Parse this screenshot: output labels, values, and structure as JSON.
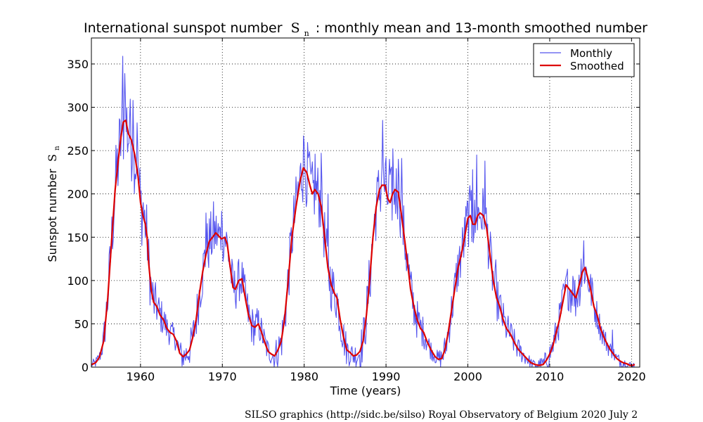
{
  "chart_data": {
    "type": "line",
    "title": "International sunspot number",
    "title_symbol": "S",
    "title_subscript": "n",
    "title_rest": ": monthly mean and 13-month smoothed number",
    "xlabel": "Time (years)",
    "ylabel": "Sunspot number",
    "ylabel_symbol": "S",
    "ylabel_subscript": "n",
    "xlim": [
      1954,
      2021
    ],
    "ylim": [
      0,
      380
    ],
    "x_ticks": [
      1960,
      1970,
      1980,
      1990,
      2000,
      2010,
      2020
    ],
    "y_ticks": [
      0,
      50,
      100,
      150,
      200,
      250,
      300,
      350
    ],
    "grid": true,
    "legend_position": "top-right",
    "credit": "SILSO graphics (http://sidc.be/silso)  Royal Observatory of Belgium  2020 July 2",
    "series": [
      {
        "name": "Monthly",
        "color": "#5555ee",
        "noise": [
          [
            1954.0,
            3
          ],
          [
            1955.0,
            5
          ],
          [
            1956.0,
            18
          ],
          [
            1957.0,
            28
          ],
          [
            1958.0,
            35
          ],
          [
            1959.0,
            30
          ],
          [
            1960.0,
            28
          ],
          [
            1962.0,
            15
          ],
          [
            1964.0,
            8
          ],
          [
            1966.0,
            12
          ],
          [
            1968.0,
            22
          ],
          [
            1970.0,
            18
          ],
          [
            1972.0,
            16
          ],
          [
            1974.0,
            14
          ],
          [
            1976.0,
            8
          ],
          [
            1978.0,
            20
          ],
          [
            1980.0,
            26
          ],
          [
            1982.0,
            22
          ],
          [
            1984.0,
            18
          ],
          [
            1986.0,
            8
          ],
          [
            1988.0,
            22
          ],
          [
            1990.0,
            25
          ],
          [
            1992.0,
            22
          ],
          [
            1994.0,
            14
          ],
          [
            1996.0,
            5
          ],
          [
            1998.0,
            15
          ],
          [
            2000.0,
            22
          ],
          [
            2002.0,
            22
          ],
          [
            2004.0,
            14
          ],
          [
            2006.0,
            9
          ],
          [
            2008.0,
            3
          ],
          [
            2010.0,
            9
          ],
          [
            2012.0,
            16
          ],
          [
            2014.0,
            18
          ],
          [
            2016.0,
            10
          ],
          [
            2018.0,
            5
          ],
          [
            2020.0,
            3
          ],
          [
            2021.0,
            2
          ]
        ],
        "peaks": [
          [
            1957.85,
            359
          ],
          [
            1958.1,
            339
          ],
          [
            1957.5,
            285
          ],
          [
            1958.7,
            285
          ],
          [
            1959.1,
            308
          ],
          [
            1959.6,
            282
          ],
          [
            1960.3,
            190
          ],
          [
            1968.0,
            178
          ],
          [
            1968.9,
            191
          ],
          [
            1969.9,
            180
          ],
          [
            1979.9,
            267
          ],
          [
            1980.6,
            245
          ],
          [
            1981.3,
            246
          ],
          [
            1982.1,
            247
          ],
          [
            1982.9,
            200
          ],
          [
            1989.5,
            230
          ],
          [
            1989.6,
            285
          ],
          [
            1990.4,
            240
          ],
          [
            1990.8,
            252
          ],
          [
            1991.5,
            240
          ],
          [
            1991.9,
            241
          ],
          [
            2000.4,
            204
          ],
          [
            2000.6,
            228
          ],
          [
            2001.1,
            245
          ],
          [
            2002.1,
            238
          ],
          [
            2003.4,
            124
          ],
          [
            2011.9,
            100
          ],
          [
            2012.8,
            105
          ],
          [
            2013.8,
            125
          ],
          [
            2014.2,
            146
          ],
          [
            2015.2,
            103
          ],
          [
            2017.7,
            43
          ]
        ]
      },
      {
        "name": "Smoothed",
        "color": "#dd0000",
        "points": [
          [
            1954.0,
            3
          ],
          [
            1954.3,
            4
          ],
          [
            1954.6,
            6
          ],
          [
            1955.0,
            12
          ],
          [
            1955.5,
            30
          ],
          [
            1956.0,
            80
          ],
          [
            1956.5,
            150
          ],
          [
            1956.9,
            205
          ],
          [
            1957.3,
            240
          ],
          [
            1957.6,
            265
          ],
          [
            1957.9,
            283
          ],
          [
            1958.2,
            285
          ],
          [
            1958.5,
            270
          ],
          [
            1958.9,
            262
          ],
          [
            1959.3,
            245
          ],
          [
            1959.7,
            220
          ],
          [
            1960.0,
            190
          ],
          [
            1960.3,
            175
          ],
          [
            1960.6,
            165
          ],
          [
            1960.8,
            150
          ],
          [
            1961.0,
            120
          ],
          [
            1961.3,
            90
          ],
          [
            1961.6,
            75
          ],
          [
            1962.0,
            70
          ],
          [
            1962.4,
            60
          ],
          [
            1962.8,
            55
          ],
          [
            1963.2,
            45
          ],
          [
            1963.6,
            40
          ],
          [
            1964.0,
            38
          ],
          [
            1964.4,
            30
          ],
          [
            1964.8,
            16
          ],
          [
            1965.2,
            12
          ],
          [
            1965.6,
            15
          ],
          [
            1966.0,
            20
          ],
          [
            1966.4,
            35
          ],
          [
            1966.8,
            55
          ],
          [
            1967.2,
            85
          ],
          [
            1967.6,
            110
          ],
          [
            1968.0,
            130
          ],
          [
            1968.4,
            145
          ],
          [
            1968.8,
            150
          ],
          [
            1969.2,
            155
          ],
          [
            1969.5,
            152
          ],
          [
            1969.9,
            148
          ],
          [
            1970.3,
            150
          ],
          [
            1970.6,
            142
          ],
          [
            1970.9,
            120
          ],
          [
            1971.3,
            92
          ],
          [
            1971.6,
            90
          ],
          [
            1972.0,
            100
          ],
          [
            1972.4,
            102
          ],
          [
            1972.8,
            80
          ],
          [
            1973.2,
            60
          ],
          [
            1973.6,
            48
          ],
          [
            1974.0,
            46
          ],
          [
            1974.4,
            50
          ],
          [
            1974.8,
            40
          ],
          [
            1975.2,
            28
          ],
          [
            1975.6,
            18
          ],
          [
            1976.0,
            15
          ],
          [
            1976.4,
            13
          ],
          [
            1976.8,
            20
          ],
          [
            1977.2,
            30
          ],
          [
            1977.6,
            55
          ],
          [
            1978.0,
            95
          ],
          [
            1978.5,
            150
          ],
          [
            1979.0,
            185
          ],
          [
            1979.5,
            215
          ],
          [
            1979.9,
            230
          ],
          [
            1980.3,
            225
          ],
          [
            1980.7,
            210
          ],
          [
            1981.0,
            200
          ],
          [
            1981.3,
            205
          ],
          [
            1981.7,
            200
          ],
          [
            1982.1,
            185
          ],
          [
            1982.5,
            150
          ],
          [
            1982.9,
            115
          ],
          [
            1983.3,
            95
          ],
          [
            1983.7,
            85
          ],
          [
            1984.0,
            80
          ],
          [
            1984.4,
            55
          ],
          [
            1984.8,
            35
          ],
          [
            1985.2,
            20
          ],
          [
            1985.6,
            17
          ],
          [
            1986.0,
            13
          ],
          [
            1986.4,
            14
          ],
          [
            1986.8,
            18
          ],
          [
            1987.2,
            30
          ],
          [
            1987.6,
            60
          ],
          [
            1988.0,
            100
          ],
          [
            1988.4,
            150
          ],
          [
            1988.8,
            185
          ],
          [
            1989.2,
            205
          ],
          [
            1989.5,
            210
          ],
          [
            1989.9,
            210
          ],
          [
            1990.2,
            195
          ],
          [
            1990.5,
            190
          ],
          [
            1990.8,
            200
          ],
          [
            1991.1,
            205
          ],
          [
            1991.5,
            202
          ],
          [
            1991.9,
            175
          ],
          [
            1992.3,
            145
          ],
          [
            1992.7,
            115
          ],
          [
            1993.0,
            90
          ],
          [
            1993.4,
            70
          ],
          [
            1993.8,
            55
          ],
          [
            1994.2,
            45
          ],
          [
            1994.6,
            40
          ],
          [
            1995.0,
            30
          ],
          [
            1995.5,
            20
          ],
          [
            1996.0,
            12
          ],
          [
            1996.4,
            9
          ],
          [
            1996.8,
            10
          ],
          [
            1997.2,
            20
          ],
          [
            1997.6,
            40
          ],
          [
            1998.0,
            65
          ],
          [
            1998.4,
            90
          ],
          [
            1998.8,
            115
          ],
          [
            1999.2,
            130
          ],
          [
            1999.6,
            150
          ],
          [
            2000.0,
            172
          ],
          [
            2000.3,
            175
          ],
          [
            2000.6,
            165
          ],
          [
            2000.9,
            165
          ],
          [
            2001.2,
            175
          ],
          [
            2001.5,
            178
          ],
          [
            2001.9,
            175
          ],
          [
            2002.3,
            160
          ],
          [
            2002.7,
            130
          ],
          [
            2003.1,
            100
          ],
          [
            2003.5,
            80
          ],
          [
            2003.9,
            70
          ],
          [
            2004.3,
            55
          ],
          [
            2004.7,
            45
          ],
          [
            2005.2,
            38
          ],
          [
            2005.7,
            28
          ],
          [
            2006.2,
            20
          ],
          [
            2006.7,
            15
          ],
          [
            2007.2,
            10
          ],
          [
            2007.7,
            5
          ],
          [
            2008.2,
            3
          ],
          [
            2008.7,
            2
          ],
          [
            2009.2,
            3
          ],
          [
            2009.6,
            8
          ],
          [
            2010.0,
            15
          ],
          [
            2010.4,
            25
          ],
          [
            2010.8,
            40
          ],
          [
            2011.2,
            55
          ],
          [
            2011.6,
            75
          ],
          [
            2012.0,
            95
          ],
          [
            2012.4,
            90
          ],
          [
            2012.8,
            85
          ],
          [
            2013.2,
            80
          ],
          [
            2013.6,
            95
          ],
          [
            2014.0,
            110
          ],
          [
            2014.3,
            115
          ],
          [
            2014.6,
            105
          ],
          [
            2015.0,
            90
          ],
          [
            2015.4,
            70
          ],
          [
            2015.8,
            60
          ],
          [
            2016.2,
            45
          ],
          [
            2016.6,
            35
          ],
          [
            2017.0,
            27
          ],
          [
            2017.4,
            20
          ],
          [
            2017.8,
            15
          ],
          [
            2018.2,
            10
          ],
          [
            2018.6,
            7
          ],
          [
            2019.0,
            5
          ],
          [
            2019.4,
            4
          ],
          [
            2019.8,
            2
          ],
          [
            2020.1,
            2
          ],
          [
            2020.4,
            3
          ]
        ]
      }
    ]
  }
}
